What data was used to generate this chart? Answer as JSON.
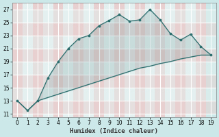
{
  "xlabel": "Humidex (Indice chaleur)",
  "background_color": "#cce8e8",
  "grid_color_white": "#e8f4f4",
  "grid_color_pink": "#e8d8d8",
  "line_color": "#2d6e6e",
  "x_data": [
    0,
    1,
    2,
    3,
    4,
    5,
    6,
    7,
    8,
    9,
    10,
    11,
    12,
    13,
    14,
    15,
    16,
    17,
    18,
    19
  ],
  "y_curve": [
    13,
    11.5,
    13,
    16.5,
    19,
    21,
    22.5,
    23,
    24.5,
    25.3,
    26.2,
    25.2,
    25.4,
    27,
    25.4,
    23.3,
    22.3,
    23.2,
    21.3,
    20.0
  ],
  "y_line": [
    13,
    11.5,
    13,
    13.5,
    14.0,
    14.5,
    15.0,
    15.5,
    16.0,
    16.5,
    17.0,
    17.5,
    18.0,
    18.3,
    18.7,
    19.0,
    19.4,
    19.7,
    20.0,
    20.0
  ],
  "ylim": [
    10.5,
    28
  ],
  "xlim": [
    -0.5,
    19.5
  ],
  "yticks": [
    11,
    13,
    15,
    17,
    19,
    21,
    23,
    25,
    27
  ],
  "xticks": [
    0,
    1,
    2,
    3,
    4,
    5,
    6,
    7,
    8,
    9,
    10,
    11,
    12,
    13,
    14,
    15,
    16,
    17,
    18,
    19
  ],
  "tick_fontsize": 5.5,
  "xlabel_fontsize": 6.5
}
